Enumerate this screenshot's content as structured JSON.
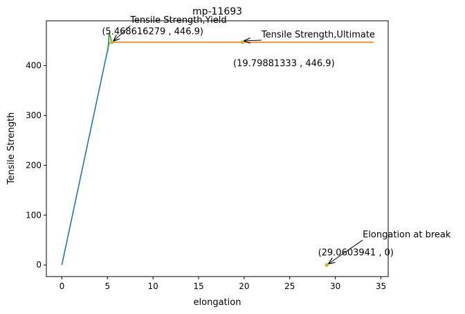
{
  "chart_data": {
    "type": "line",
    "title": "mp-11693",
    "xlabel": "elongation",
    "ylabel": "Tensile Strength",
    "xlim": [
      -1.7,
      35.8
    ],
    "ylim": [
      -23.3,
      489.9
    ],
    "xticks": [
      0,
      5,
      10,
      15,
      20,
      25,
      30,
      35
    ],
    "yticks": [
      0,
      100,
      200,
      300,
      400
    ],
    "grid": false,
    "series": [
      {
        "color": "#1f77b4",
        "x": [
          0,
          5.2
        ],
        "y": [
          0,
          446.9
        ]
      },
      {
        "color": "#ff7f0e",
        "x": [
          5.468616279,
          34.2
        ],
        "y": [
          446.9,
          446.9
        ]
      },
      {
        "color": "#2ca02c",
        "x": [
          5.05,
          5.2,
          5.468616279
        ],
        "y": [
          430,
          466,
          446.9
        ]
      }
    ],
    "points": [
      {
        "x": 5.468616279,
        "y": 446.9,
        "color": "#bcbd22"
      },
      {
        "x": 19.79881333,
        "y": 446.9,
        "color": "#bcbd22"
      },
      {
        "x": 29.0603941,
        "y": 0,
        "color": "#bcbd22"
      }
    ],
    "annotations": [
      {
        "label": "Tensile Strength,Yield",
        "coord_label": "(5.468616279 , 446.9)",
        "point": [
          5.468616279,
          446.9
        ],
        "label_at": [
          7.5,
          480
        ],
        "coord_at": [
          4.4,
          463
        ]
      },
      {
        "label": "Tensile Strength,Ultimate",
        "coord_label": "(19.79881333 , 446.9)",
        "point": [
          19.79881333,
          446.9
        ],
        "label_at": [
          21.9,
          451
        ],
        "coord_at": [
          18.8,
          399
        ]
      },
      {
        "label": "Elongation at break",
        "coord_label": "(29.0603941 , 0)",
        "point": [
          29.0603941,
          0
        ],
        "label_at": [
          33.0,
          50
        ],
        "coord_at": [
          28.1,
          19
        ]
      }
    ]
  }
}
